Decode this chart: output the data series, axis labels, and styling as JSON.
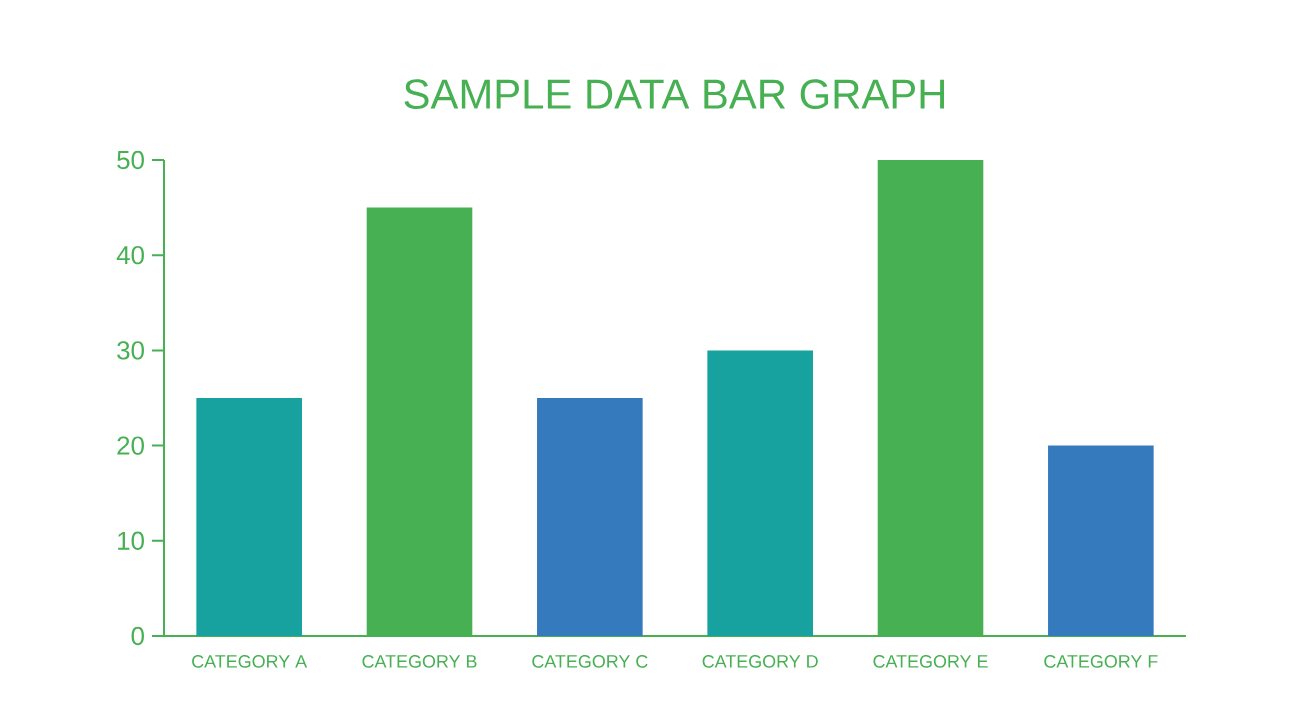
{
  "chart_data": {
    "type": "bar",
    "title": "SAMPLE DATA BAR GRAPH",
    "categories": [
      "CATEGORY A",
      "CATEGORY B",
      "CATEGORY C",
      "CATEGORY D",
      "CATEGORY E",
      "CATEGORY F"
    ],
    "values": [
      25,
      45,
      25,
      30,
      50,
      20
    ],
    "colors": [
      "#17a19f",
      "#46b053",
      "#367abe",
      "#17a19f",
      "#46b053",
      "#367abe"
    ],
    "ylim": [
      0,
      50
    ],
    "yticks": [
      0,
      10,
      20,
      30,
      40,
      50
    ]
  }
}
